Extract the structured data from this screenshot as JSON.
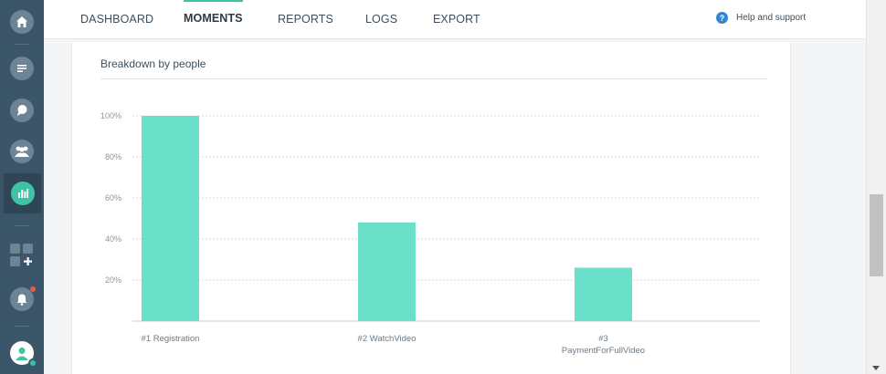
{
  "sidebar": {
    "items": [
      {
        "name": "home-icon"
      },
      {
        "name": "messages-icon"
      },
      {
        "name": "chat-icon"
      },
      {
        "name": "people-icon"
      },
      {
        "name": "analytics-icon",
        "active": true
      },
      {
        "name": "add-widget-icon"
      },
      {
        "name": "notifications-icon"
      },
      {
        "name": "user-settings-icon"
      }
    ]
  },
  "nav": {
    "tabs": [
      "DASHBOARD",
      "MOMENTS",
      "REPORTS",
      "LOGS",
      "EXPORT"
    ],
    "active": "MOMENTS",
    "help_label": "Help and support"
  },
  "card": {
    "title": "Breakdown by people"
  },
  "chart_data": {
    "type": "bar",
    "categories": [
      "#1 Registration",
      "#2 WatchVideo",
      "#3 PaymentForFullVideo"
    ],
    "category_lines": [
      [
        "#1 Registration"
      ],
      [
        "#2 WatchVideo"
      ],
      [
        "#3",
        "PaymentForFullVideo"
      ]
    ],
    "values": [
      100,
      48,
      26
    ],
    "y_ticks": [
      "20%",
      "40%",
      "60%",
      "80%",
      "100%"
    ],
    "ylim": [
      0,
      100
    ],
    "grid": true,
    "bar_color": "#6ae0c8",
    "title": "",
    "xlabel": "",
    "ylabel": ""
  },
  "colors": {
    "accent": "#3fc3a6",
    "sidebar": "#3a5668",
    "help_icon": "#2e86d4"
  }
}
